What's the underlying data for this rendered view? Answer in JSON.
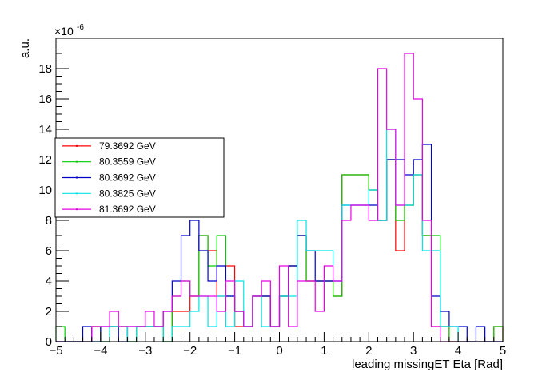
{
  "chart_data": {
    "type": "histogram-step",
    "xlabel": "leading missingET Eta [Rad]",
    "ylabel": "a.u.",
    "y_exponent": "×10",
    "y_exponent_power": "-6",
    "xlim": [
      -5,
      5
    ],
    "ylim": [
      0,
      20
    ],
    "xticks": [
      -5,
      -4,
      -3,
      -2,
      -1,
      0,
      1,
      2,
      3,
      4,
      5
    ],
    "xtick_labels": [
      "−5",
      "−4",
      "−3",
      "−2",
      "−1",
      "0",
      "1",
      "2",
      "3",
      "4",
      "5"
    ],
    "yticks": [
      0,
      2,
      4,
      6,
      8,
      10,
      12,
      14,
      16,
      18
    ],
    "ytick_labels": [
      "0",
      "2",
      "4",
      "6",
      "8",
      "10",
      "12",
      "14",
      "16",
      "18"
    ],
    "bin_width": 0.2,
    "x_start": -5.0,
    "legend_position": "left",
    "series": [
      {
        "name": "79.3692 GeV",
        "color": "#ff0000",
        "values": [
          0,
          0,
          0,
          0,
          1,
          0,
          1,
          1,
          0,
          1,
          1,
          1,
          0,
          2,
          2,
          3,
          7,
          6,
          3,
          5,
          1,
          1,
          3,
          3,
          1,
          3,
          5,
          7,
          4,
          4,
          4,
          3,
          11,
          11,
          11,
          10,
          8,
          12,
          6,
          9,
          11,
          7,
          1,
          1,
          0,
          0,
          0,
          0,
          0,
          1
        ]
      },
      {
        "name": "80.3559 GeV",
        "color": "#00cc00",
        "values": [
          1,
          0,
          0,
          0,
          1,
          0,
          1,
          1,
          0,
          1,
          1,
          1,
          0,
          3,
          4,
          3,
          7,
          5,
          7,
          3,
          2,
          1,
          3,
          3,
          1,
          3,
          5,
          7,
          4,
          4,
          4,
          3,
          11,
          11,
          11,
          10,
          8,
          12,
          8,
          9,
          11,
          7,
          7,
          1,
          0,
          0,
          0,
          0,
          0,
          1
        ]
      },
      {
        "name": "80.3692 GeV",
        "color": "#0000cc",
        "values": [
          0,
          0,
          0,
          1,
          0,
          1,
          1,
          0,
          1,
          1,
          1,
          1,
          2,
          4,
          7,
          8,
          6,
          4,
          5,
          3,
          2,
          1,
          3,
          3,
          1,
          3,
          5,
          7,
          6,
          4,
          4,
          4,
          9,
          9,
          9,
          9,
          8,
          12,
          12,
          11,
          12,
          13,
          3,
          2,
          1,
          1,
          0,
          1,
          0,
          0
        ]
      },
      {
        "name": "80.3825 GeV",
        "color": "#00e5e5",
        "values": [
          0,
          0,
          0,
          0,
          0,
          0,
          1,
          1,
          0,
          1,
          1,
          1,
          0,
          1,
          1,
          2,
          3,
          1,
          3,
          1,
          4,
          1,
          3,
          1,
          1,
          3,
          3,
          8,
          6,
          6,
          6,
          4,
          9,
          9,
          9,
          10,
          8,
          14,
          9,
          9,
          11,
          6,
          6,
          1,
          1,
          0,
          0,
          0,
          0,
          0
        ]
      },
      {
        "name": "81.3692 GeV",
        "color": "#e600e6",
        "values": [
          0,
          0,
          0,
          0,
          1,
          1,
          2,
          1,
          1,
          1,
          2,
          1,
          2,
          3,
          4,
          3,
          3,
          3,
          2,
          4,
          2,
          1,
          3,
          4,
          1,
          5,
          1,
          4,
          4,
          2,
          5,
          4,
          8,
          9,
          9,
          8,
          18,
          14,
          9,
          19,
          16,
          8,
          1,
          0,
          0,
          0,
          0,
          0,
          0,
          0
        ]
      }
    ]
  }
}
